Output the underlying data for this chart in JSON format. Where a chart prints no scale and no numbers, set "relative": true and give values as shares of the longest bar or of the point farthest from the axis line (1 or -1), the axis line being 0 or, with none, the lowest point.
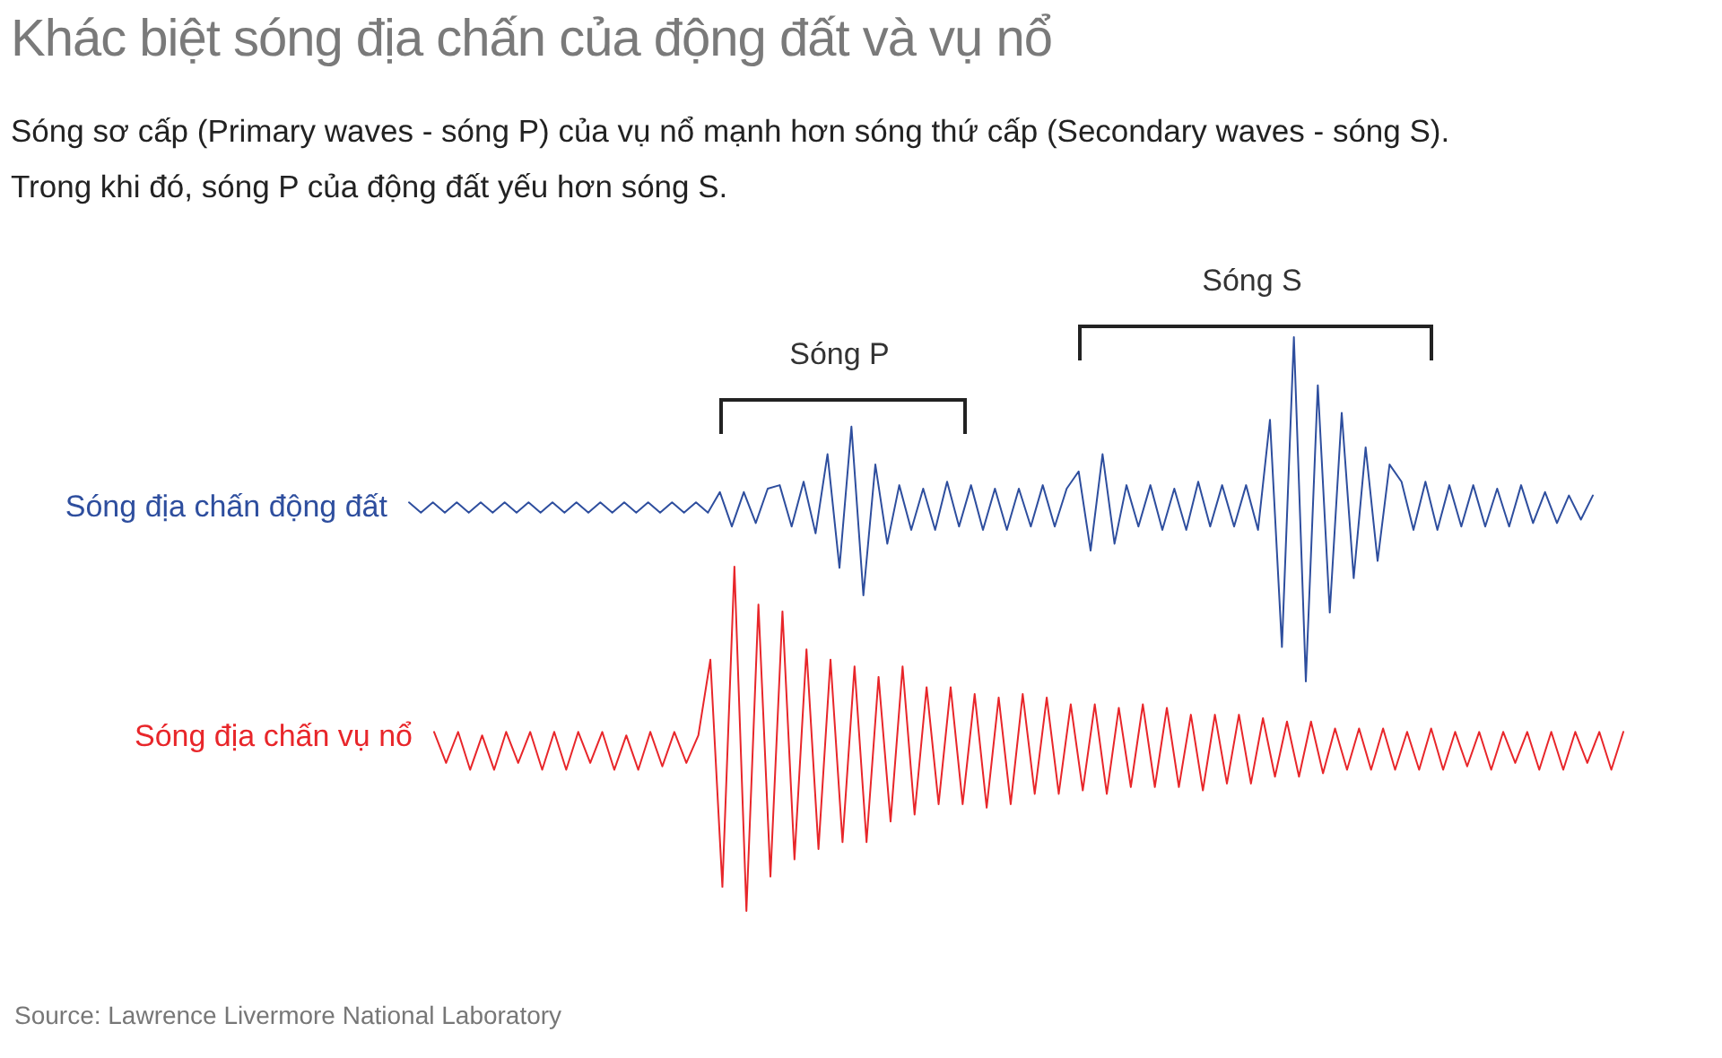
{
  "chart_data": [
    {
      "type": "line",
      "relative": true,
      "title": "Khác biệt sóng địa chấn của động đất và vụ nổ",
      "subtitle": "Sóng sơ cấp (Primary waves - sóng P) của vụ nổ mạnh hơn sóng thứ cấp (Secondary waves - sóng S). Trong khi đó, sóng P của động đất yếu hơn sóng S.",
      "annotations": [
        "Sóng P",
        "Sóng S"
      ],
      "categories": [
        null,
        null,
        null,
        null,
        null,
        null,
        null,
        null,
        null,
        null,
        null,
        null,
        null,
        null,
        null,
        null,
        null,
        null,
        null,
        null,
        null,
        null,
        null,
        null,
        null,
        null,
        null,
        null,
        null,
        null,
        null,
        null,
        null,
        null,
        null,
        null,
        null,
        null,
        null,
        null,
        null,
        null,
        null,
        null,
        null,
        null,
        null,
        null,
        null,
        null,
        null,
        null,
        null,
        null,
        null,
        null,
        null,
        null,
        null,
        null,
        null,
        null,
        null,
        null,
        null,
        null,
        null,
        null,
        null,
        null,
        null,
        null,
        null,
        null,
        null,
        null,
        null,
        null,
        null,
        null,
        null,
        null,
        null,
        null,
        null,
        null,
        null,
        null,
        null,
        null,
        null,
        null,
        null,
        null,
        null,
        null,
        null,
        null,
        null,
        null
      ],
      "series": [
        {
          "name": "Sóng địa chấn động đất",
          "color": "#2e4e9e",
          "values": [
            0.52,
            0.49,
            0.52,
            0.49,
            0.52,
            0.49,
            0.52,
            0.49,
            0.52,
            0.49,
            0.52,
            0.49,
            0.52,
            0.49,
            0.52,
            0.49,
            0.52,
            0.49,
            0.52,
            0.49,
            0.52,
            0.49,
            0.52,
            0.49,
            0.52,
            0.49,
            0.55,
            0.45,
            0.55,
            0.46,
            0.56,
            0.57,
            0.45,
            0.58,
            0.43,
            0.66,
            0.33,
            0.74,
            0.25,
            0.63,
            0.4,
            0.57,
            0.44,
            0.56,
            0.44,
            0.58,
            0.45,
            0.57,
            0.44,
            0.56,
            0.44,
            0.56,
            0.45,
            0.57,
            0.45,
            0.56,
            0.61,
            0.38,
            0.66,
            0.4,
            0.57,
            0.45,
            0.57,
            0.44,
            0.56,
            0.44,
            0.58,
            0.45,
            0.57,
            0.45,
            0.57,
            0.44,
            0.76,
            0.1,
            1,
            0,
            0.86,
            0.2,
            0.78,
            0.3,
            0.68,
            0.35,
            0.63,
            0.58,
            0.44,
            0.58,
            0.44,
            0.57,
            0.45,
            0.57,
            0.45,
            0.56,
            0.45,
            0.57,
            0.46,
            0.55,
            0.46,
            0.54,
            0.47,
            0.54
          ]
        }
      ]
    },
    {
      "type": "line",
      "relative": true,
      "annotations": [
        "Source: Lawrence Livermore National Laboratory"
      ],
      "categories": [
        null,
        null,
        null,
        null,
        null,
        null,
        null,
        null,
        null,
        null,
        null,
        null,
        null,
        null,
        null,
        null,
        null,
        null,
        null,
        null,
        null,
        null,
        null,
        null,
        null,
        null,
        null,
        null,
        null,
        null,
        null,
        null,
        null,
        null,
        null,
        null,
        null,
        null,
        null,
        null,
        null,
        null,
        null,
        null,
        null,
        null,
        null,
        null,
        null,
        null,
        null,
        null,
        null,
        null,
        null,
        null,
        null,
        null,
        null,
        null,
        null,
        null,
        null,
        null,
        null,
        null,
        null,
        null,
        null,
        null,
        null,
        null,
        null,
        null,
        null,
        null,
        null,
        null,
        null,
        null,
        null,
        null,
        null,
        null,
        null,
        null,
        null,
        null,
        null,
        null,
        null,
        null,
        null,
        null,
        null,
        null,
        null,
        null,
        null,
        null
      ],
      "series": [
        {
          "name": "Sóng địa chấn vụ nổ",
          "color": "#e8262a",
          "values": [
            0.52,
            0.43,
            0.52,
            0.41,
            0.51,
            0.41,
            0.52,
            0.43,
            0.52,
            0.41,
            0.52,
            0.41,
            0.52,
            0.43,
            0.52,
            0.41,
            0.51,
            0.41,
            0.52,
            0.42,
            0.52,
            0.43,
            0.51,
            0.73,
            0.07,
            1,
            0,
            0.89,
            0.1,
            0.87,
            0.15,
            0.76,
            0.18,
            0.73,
            0.2,
            0.71,
            0.2,
            0.68,
            0.26,
            0.71,
            0.28,
            0.65,
            0.31,
            0.65,
            0.31,
            0.63,
            0.3,
            0.62,
            0.31,
            0.63,
            0.34,
            0.62,
            0.34,
            0.6,
            0.35,
            0.6,
            0.34,
            0.59,
            0.36,
            0.6,
            0.36,
            0.59,
            0.36,
            0.57,
            0.35,
            0.57,
            0.37,
            0.57,
            0.37,
            0.56,
            0.39,
            0.55,
            0.39,
            0.55,
            0.4,
            0.53,
            0.41,
            0.53,
            0.41,
            0.53,
            0.41,
            0.52,
            0.41,
            0.53,
            0.41,
            0.52,
            0.42,
            0.52,
            0.41,
            0.52,
            0.43,
            0.52,
            0.41,
            0.52,
            0.41,
            0.52,
            0.43,
            0.52,
            0.41,
            0.52
          ]
        }
      ]
    }
  ]
}
